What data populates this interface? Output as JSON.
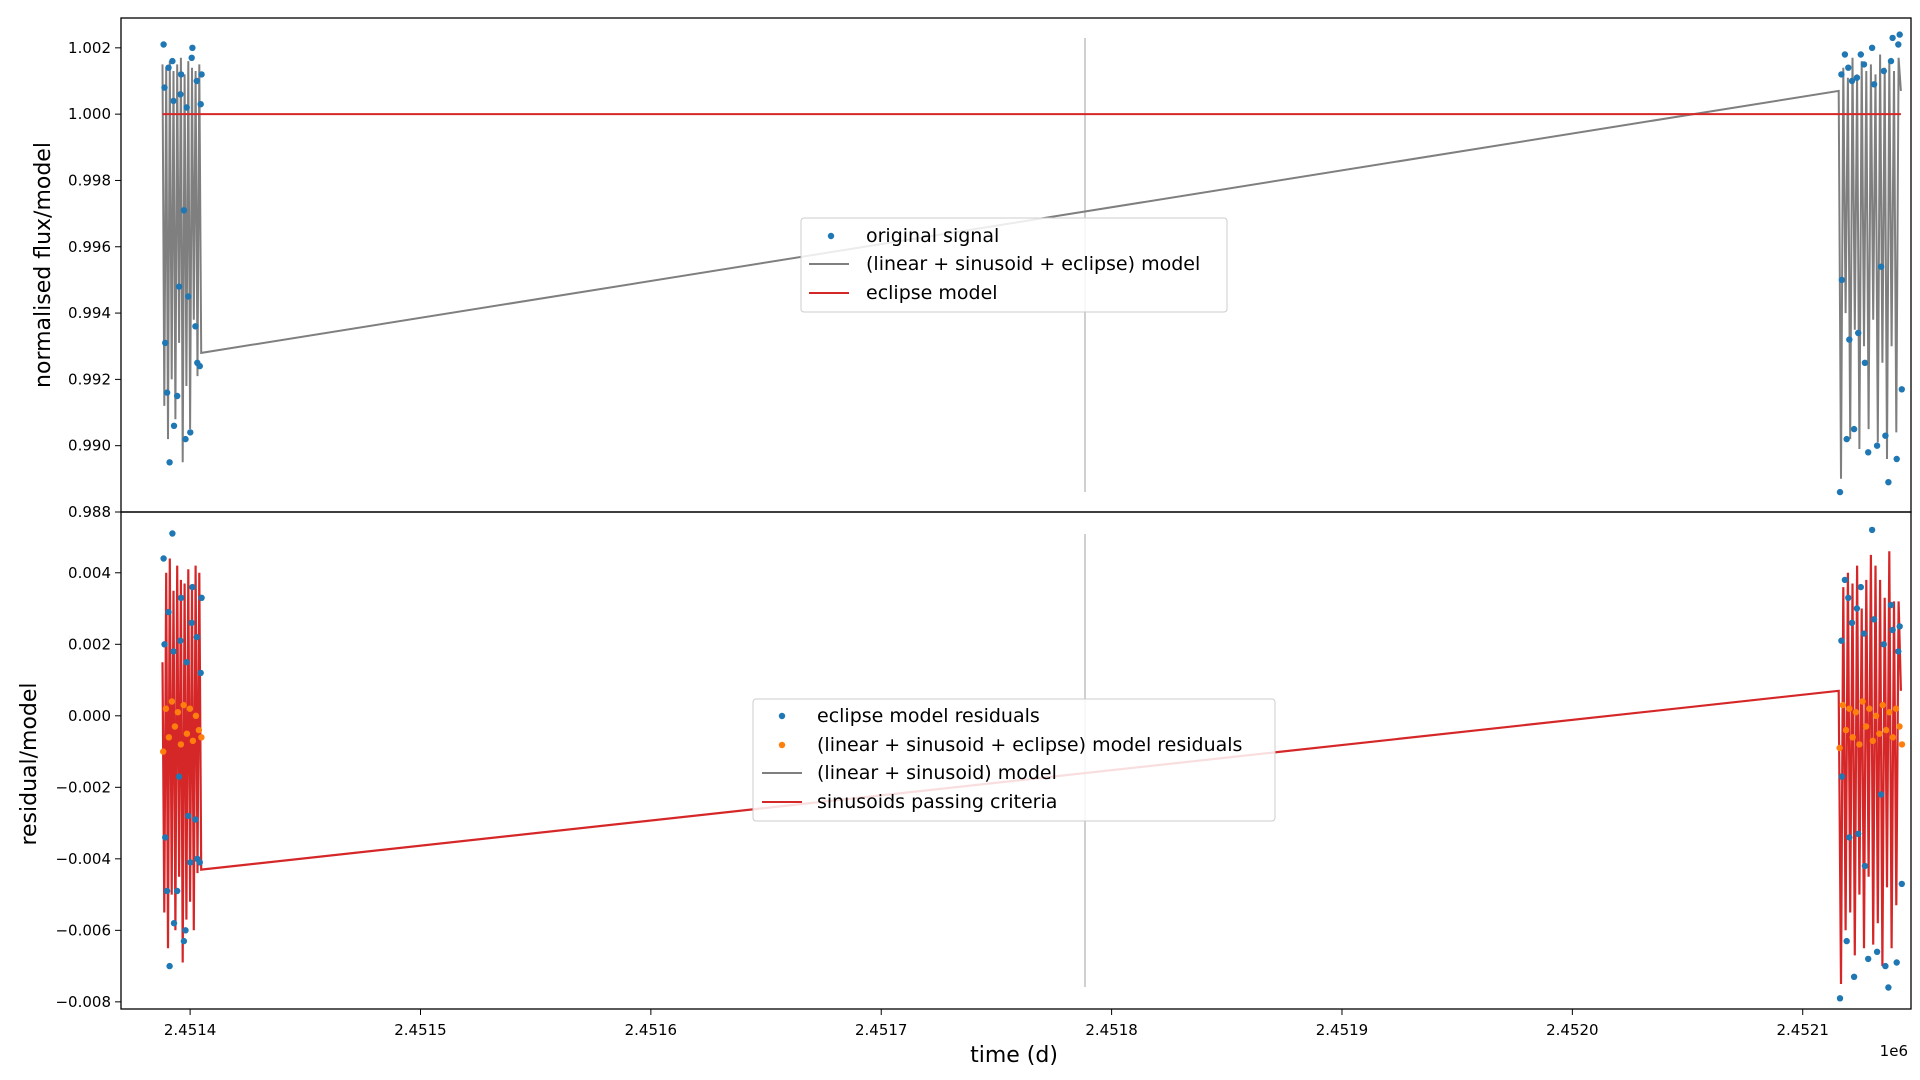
{
  "chart_data": [
    {
      "type": "scatter",
      "panel": "top",
      "ylabel": "normalised flux/model",
      "ylim": [
        0.988,
        1.0029
      ],
      "yticks": [
        "1.002",
        "1.000",
        "0.998",
        "0.996",
        "0.994",
        "0.992",
        "0.990",
        "0.988"
      ],
      "legend": {
        "placement": "center",
        "entries": [
          {
            "label": "original signal",
            "kind": "marker",
            "color": "#1f77b4"
          },
          {
            "label": "(linear + sinusoid + eclipse) model",
            "kind": "line",
            "color": "#7f7f7f"
          },
          {
            "label": "eclipse model",
            "kind": "line",
            "color": "#d62728"
          }
        ]
      },
      "series": [
        {
          "name": "original signal",
          "color": "#1f77b4",
          "x": [
            2451388.5,
            2451389.2,
            2451390.0,
            2451391.1,
            2451392.3,
            2451393.0,
            2451394.4,
            2451395.2,
            2451396.1,
            2451397.3,
            2451398.0,
            2451399.2,
            2451400.1,
            2451401.0,
            2451402.3,
            2451403.1,
            2451404.2,
            2451405.0,
            2451388.9,
            2451390.6,
            2451392.8,
            2451395.8,
            2451398.5,
            2451400.7,
            2451402.9,
            2451404.6,
            2452116.2,
            2452117.0,
            2452118.3,
            2452119.1,
            2452120.2,
            2452121.4,
            2452122.3,
            2452124.1,
            2452125.2,
            2452127.0,
            2452128.4,
            2452130.1,
            2452132.3,
            2452134.0,
            2452135.9,
            2452137.2,
            2452139.0,
            2452140.8,
            2452142.1,
            2452143.0,
            2452116.8,
            2452119.8,
            2452123.5,
            2452126.6,
            2452131.0,
            2452135.2,
            2452138.3,
            2452141.5
          ],
          "y": [
            1.0021,
            0.9931,
            0.9916,
            0.9895,
            1.0016,
            0.9906,
            0.9915,
            0.9948,
            1.0012,
            0.9971,
            0.9902,
            0.9945,
            0.9904,
            1.002,
            0.9936,
            0.9925,
            0.9924,
            1.0012,
            1.0008,
            1.0014,
            1.0004,
            1.0006,
            1.0002,
            1.0017,
            1.001,
            1.0003,
            0.9886,
            0.995,
            1.0018,
            0.9902,
            0.9932,
            1.001,
            0.9905,
            0.9934,
            1.0018,
            0.9925,
            0.9898,
            1.002,
            0.99,
            0.9954,
            0.9903,
            0.9889,
            1.0023,
            0.9896,
            1.0024,
            0.9917,
            1.0012,
            1.0014,
            1.0011,
            1.0015,
            1.0009,
            1.0013,
            1.0016,
            1.0021
          ]
        },
        {
          "name": "(linear + sinusoid + eclipse) model",
          "color": "#7f7f7f",
          "x": [
            2451388.0,
            2451388.8,
            2451389.6,
            2451390.4,
            2451391.2,
            2451392.0,
            2451392.8,
            2451393.6,
            2451394.4,
            2451395.2,
            2451396.0,
            2451396.8,
            2451397.6,
            2451398.4,
            2451399.2,
            2451400.0,
            2451400.8,
            2451401.6,
            2451402.4,
            2451403.2,
            2451404.0,
            2451404.8,
            2452115.6,
            2452116.6,
            2452117.6,
            2452118.6,
            2452119.6,
            2452120.6,
            2452121.6,
            2452122.6,
            2452123.6,
            2452124.6,
            2452125.6,
            2452126.6,
            2452127.6,
            2452128.6,
            2452129.6,
            2452130.6,
            2452131.6,
            2452132.6,
            2452133.6,
            2452134.6,
            2452135.6,
            2452136.6,
            2452137.6,
            2452138.6,
            2452139.6,
            2452140.6,
            2452141.6,
            2452142.6
          ],
          "y": [
            1.0015,
            0.9912,
            1.0014,
            0.9902,
            1.0016,
            0.992,
            1.0013,
            0.9908,
            1.0015,
            0.9931,
            1.0017,
            0.9895,
            1.0012,
            0.9918,
            1.0016,
            0.9905,
            1.0014,
            0.9938,
            1.0013,
            0.9921,
            1.0015,
            0.9928,
            1.0007,
            0.989,
            1.0014,
            0.994,
            1.0011,
            0.9902,
            1.0017,
            0.9935,
            1.0012,
            0.9899,
            1.0016,
            0.993,
            1.0013,
            0.9905,
            1.0015,
            0.9938,
            1.0012,
            0.9901,
            1.0018,
            0.9925,
            1.0014,
            0.9896,
            1.0016,
            0.993,
            1.0013,
            0.9904,
            1.0017,
            1.0007
          ]
        },
        {
          "name": "eclipse model",
          "color": "#d62728",
          "x": [
            2451388.0,
            2452142.6
          ],
          "y": [
            1.0,
            1.0
          ]
        }
      ]
    },
    {
      "type": "scatter",
      "panel": "bottom",
      "xlabel": "time (d)",
      "ylabel": "residual/model",
      "offset_label": "1e6",
      "xlim": [
        2451370,
        2452147
      ],
      "ylim": [
        -0.0082,
        0.0057
      ],
      "xticks": [
        "2.4514",
        "2.4515",
        "2.4516",
        "2.4517",
        "2.4518",
        "2.4519",
        "2.4520",
        "2.4521"
      ],
      "xtick_values": [
        2451400,
        2451500,
        2451600,
        2451700,
        2451800,
        2451900,
        2452000,
        2452100
      ],
      "yticks": [
        "0.004",
        "0.002",
        "0.000",
        "−0.002",
        "−0.004",
        "−0.006",
        "−0.008"
      ],
      "legend": {
        "placement": "center",
        "entries": [
          {
            "label": "eclipse model residuals",
            "kind": "marker",
            "color": "#1f77b4"
          },
          {
            "label": "(linear + sinusoid + eclipse) model residuals",
            "kind": "marker",
            "color": "#ff7f0e"
          },
          {
            "label": "(linear + sinusoid) model",
            "kind": "line",
            "color": "#7f7f7f"
          },
          {
            "label": "sinusoids passing criteria",
            "kind": "line",
            "color": "#d62728"
          }
        ]
      },
      "series": [
        {
          "name": "eclipse model residuals",
          "color": "#1f77b4",
          "x": [
            2451388.5,
            2451389.2,
            2451390.0,
            2451391.1,
            2451392.3,
            2451393.0,
            2451394.4,
            2451395.2,
            2451396.1,
            2451397.3,
            2451398.0,
            2451399.2,
            2451400.1,
            2451401.0,
            2451402.3,
            2451403.1,
            2451404.2,
            2451405.0,
            2451388.9,
            2451390.6,
            2451392.8,
            2451395.8,
            2451398.5,
            2451400.7,
            2451402.9,
            2451404.6,
            2452116.2,
            2452117.0,
            2452118.3,
            2452119.1,
            2452120.2,
            2452121.4,
            2452122.3,
            2452124.1,
            2452125.2,
            2452127.0,
            2452128.4,
            2452130.1,
            2452132.3,
            2452134.0,
            2452135.9,
            2452137.2,
            2452139.0,
            2452140.8,
            2452142.1,
            2452143.0,
            2452116.8,
            2452119.8,
            2452123.5,
            2452126.6,
            2452131.0,
            2452135.2,
            2452138.3,
            2452141.5
          ],
          "y": [
            0.0044,
            -0.0034,
            -0.0049,
            -0.007,
            0.0051,
            -0.0058,
            -0.0049,
            -0.0017,
            0.0033,
            -0.0063,
            -0.006,
            -0.0028,
            -0.0041,
            0.0036,
            -0.0029,
            -0.004,
            -0.0041,
            0.0033,
            0.002,
            0.0029,
            0.0018,
            0.0021,
            0.0015,
            0.0026,
            0.0022,
            0.0012,
            -0.0079,
            -0.0017,
            0.0038,
            -0.0063,
            -0.0034,
            0.0026,
            -0.0073,
            -0.0033,
            0.0036,
            -0.0042,
            -0.0068,
            0.0052,
            -0.0066,
            -0.0022,
            -0.007,
            -0.0076,
            0.0024,
            -0.0069,
            0.0025,
            -0.0047,
            0.0021,
            0.0033,
            0.003,
            0.0023,
            0.0027,
            0.002,
            0.0031,
            0.0018
          ]
        },
        {
          "name": "(linear + sinusoid + eclipse) model residuals",
          "color": "#ff7f0e",
          "x": [
            2451388.3,
            2451389.5,
            2451390.8,
            2451392.1,
            2451393.4,
            2451394.7,
            2451396.0,
            2451397.2,
            2451398.6,
            2451399.9,
            2451401.2,
            2451402.5,
            2451403.8,
            2451404.9,
            2452116.0,
            2452117.4,
            2452118.8,
            2452120.2,
            2452121.7,
            2452123.1,
            2452124.6,
            2452126.0,
            2452127.5,
            2452128.9,
            2452130.4,
            2452131.8,
            2452133.3,
            2452134.7,
            2452136.2,
            2452137.6,
            2452139.1,
            2452140.5,
            2452142.0,
            2452143.1
          ],
          "y": [
            -0.001,
            0.0002,
            -0.0006,
            0.0004,
            -0.0003,
            0.0001,
            -0.0008,
            0.0003,
            -0.0005,
            0.0002,
            -0.0007,
            0.0,
            -0.0004,
            -0.0006,
            -0.0009,
            0.0003,
            -0.0004,
            0.0002,
            -0.0006,
            0.0001,
            -0.0008,
            0.0004,
            -0.0003,
            0.0002,
            -0.0007,
            0.0,
            -0.0005,
            0.0003,
            -0.0004,
            0.0001,
            -0.0006,
            0.0002,
            -0.0003,
            -0.0008
          ]
        },
        {
          "name": "sinusoids passing criteria",
          "color": "#d62728",
          "x": [
            2451388.0,
            2451388.8,
            2451389.6,
            2451390.4,
            2451391.2,
            2451392.0,
            2451392.8,
            2451393.6,
            2451394.4,
            2451395.2,
            2451396.0,
            2451396.8,
            2451397.6,
            2451398.4,
            2451399.2,
            2451400.0,
            2451400.8,
            2451401.6,
            2451402.4,
            2451403.2,
            2451404.0,
            2451404.8,
            2452115.6,
            2452116.6,
            2452117.6,
            2452118.6,
            2452119.6,
            2452120.6,
            2452121.6,
            2452122.6,
            2452123.6,
            2452124.6,
            2452125.6,
            2452126.6,
            2452127.6,
            2452128.6,
            2452129.6,
            2452130.6,
            2452131.6,
            2452132.6,
            2452133.6,
            2452134.6,
            2452135.6,
            2452136.6,
            2452137.6,
            2452138.6,
            2452139.6,
            2452140.6,
            2452141.6,
            2452142.6
          ],
          "y": [
            0.0015,
            -0.0055,
            0.004,
            -0.0065,
            0.0044,
            -0.005,
            0.0035,
            -0.006,
            0.0042,
            -0.0045,
            0.0038,
            -0.0069,
            0.0037,
            -0.0057,
            0.0041,
            -0.0052,
            0.0036,
            -0.006,
            0.0042,
            -0.0044,
            0.004,
            -0.0043,
            0.0007,
            -0.0075,
            0.0036,
            -0.006,
            0.004,
            -0.0055,
            0.0037,
            -0.0067,
            0.0042,
            -0.005,
            0.003,
            -0.0065,
            0.0038,
            -0.0045,
            0.0045,
            -0.0064,
            0.0042,
            -0.0058,
            0.0038,
            -0.007,
            0.0033,
            -0.0048,
            0.0046,
            -0.0065,
            0.0032,
            -0.0053,
            0.0032,
            0.0007
          ]
        }
      ]
    }
  ]
}
